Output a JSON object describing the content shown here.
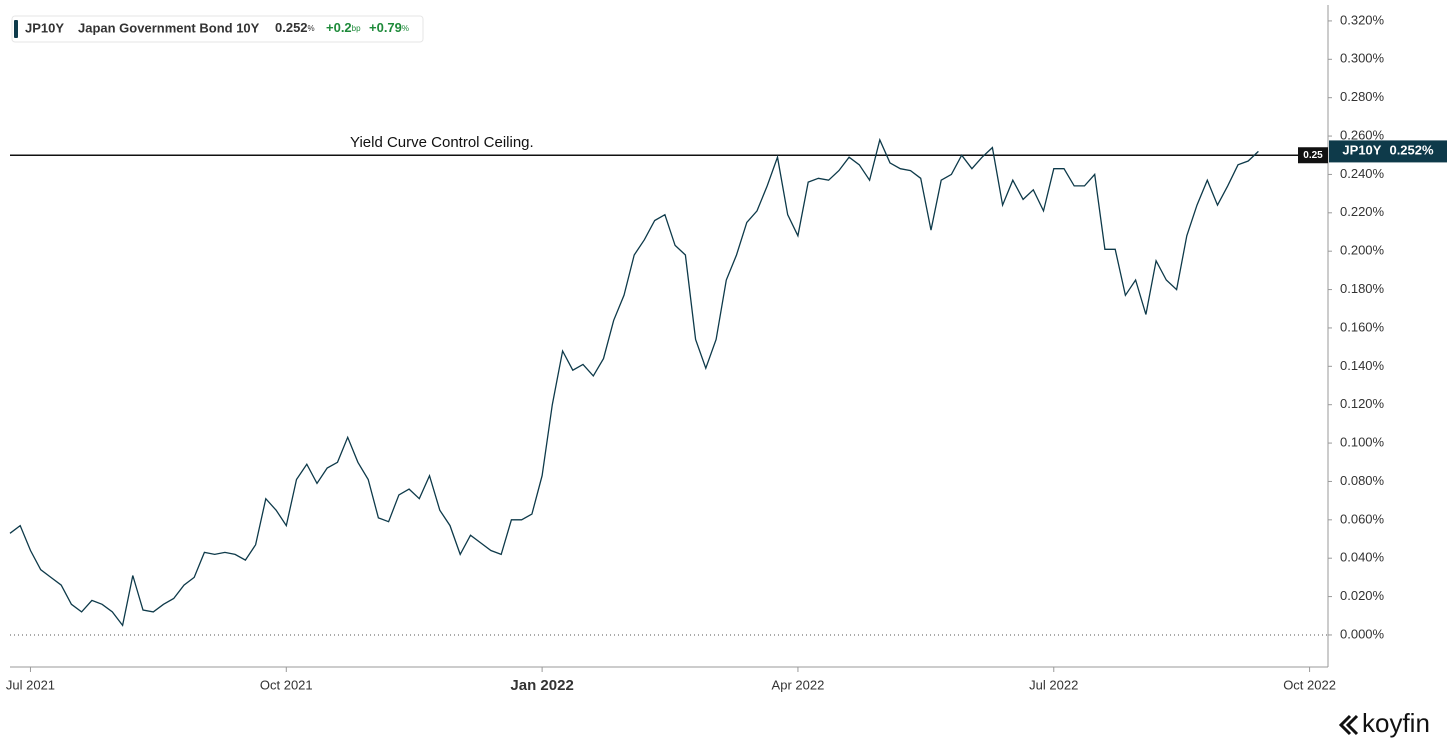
{
  "chart_data": {
    "type": "line",
    "header": {
      "name": "Japan Government Bond 10Y",
      "value": "0.252",
      "unit": "%",
      "change": "+0.2",
      "change_unit": "bp",
      "pct_change": "+0.79",
      "pct_unit": "%"
    },
    "brand": "koyfin",
    "hline": {
      "value": 0.25,
      "label": "0.25",
      "annotation": "Yield Curve Control Ceiling."
    },
    "last_label": "0.252%",
    "baseline": 0,
    "xlim": [
      2021.48,
      2022.768
    ],
    "xticks": [
      {
        "value": 2021.5,
        "label": "Jul 2021"
      },
      {
        "value": 2021.75,
        "label": "Oct 2021"
      },
      {
        "value": 2022,
        "label": "Jan 2022"
      },
      {
        "value": 2022.25,
        "label": "Apr 2022"
      },
      {
        "value": 2022.5,
        "label": "Jul 2022"
      },
      {
        "value": 2022.75,
        "label": "Oct 2022"
      }
    ],
    "ylim": [
      -0.0167,
      0.3283
    ],
    "yticks": [
      {
        "value": 0,
        "label": "0.000%"
      },
      {
        "value": 0.02,
        "label": "0.020%"
      },
      {
        "value": 0.04,
        "label": "0.040%"
      },
      {
        "value": 0.06,
        "label": "0.060%"
      },
      {
        "value": 0.08,
        "label": "0.080%"
      },
      {
        "value": 0.1,
        "label": "0.100%"
      },
      {
        "value": 0.12,
        "label": "0.120%"
      },
      {
        "value": 0.14,
        "label": "0.140%"
      },
      {
        "value": 0.16,
        "label": "0.160%"
      },
      {
        "value": 0.18,
        "label": "0.180%"
      },
      {
        "value": 0.2,
        "label": "0.200%"
      },
      {
        "value": 0.22,
        "label": "0.220%"
      },
      {
        "value": 0.24,
        "label": "0.240%"
      },
      {
        "value": 0.26,
        "label": "0.260%"
      },
      {
        "value": 0.28,
        "label": "0.280%"
      },
      {
        "value": 0.3,
        "label": "0.300%"
      },
      {
        "value": 0.32,
        "label": "0.320%"
      }
    ],
    "x": [
      2021.48,
      2021.49,
      2021.5,
      2021.51,
      2021.52,
      2021.53,
      2021.54,
      2021.55,
      2021.56,
      2021.57,
      2021.58,
      2021.59,
      2021.6,
      2021.61,
      2021.62,
      2021.63,
      2021.64,
      2021.65,
      2021.66,
      2021.67,
      2021.68,
      2021.69,
      2021.7,
      2021.71,
      2021.72,
      2021.73,
      2021.74,
      2021.75,
      2021.76,
      2021.77,
      2021.78,
      2021.79,
      2021.8,
      2021.81,
      2021.82,
      2021.83,
      2021.84,
      2021.85,
      2021.86,
      2021.87,
      2021.88,
      2021.89,
      2021.9,
      2021.91,
      2021.92,
      2021.93,
      2021.94,
      2021.95,
      2021.96,
      2021.97,
      2021.98,
      2021.99,
      2022.0,
      2022.01,
      2022.02,
      2022.03,
      2022.04,
      2022.05,
      2022.06,
      2022.07,
      2022.08,
      2022.09,
      2022.1,
      2022.11,
      2022.12,
      2022.13,
      2022.14,
      2022.15,
      2022.16,
      2022.17,
      2022.18,
      2022.19,
      2022.2,
      2022.21,
      2022.22,
      2022.23,
      2022.24,
      2022.25,
      2022.26,
      2022.27,
      2022.28,
      2022.29,
      2022.3,
      2022.31,
      2022.32,
      2022.33,
      2022.34,
      2022.35,
      2022.36,
      2022.37,
      2022.38,
      2022.39,
      2022.4,
      2022.41,
      2022.42,
      2022.43,
      2022.44,
      2022.45,
      2022.46,
      2022.47,
      2022.48,
      2022.49,
      2022.5,
      2022.51,
      2022.52,
      2022.53,
      2022.54,
      2022.55,
      2022.56,
      2022.57,
      2022.58,
      2022.59,
      2022.6,
      2022.61,
      2022.62,
      2022.63,
      2022.64,
      2022.65,
      2022.66,
      2022.67,
      2022.68,
      2022.69,
      2022.7
    ],
    "series": [
      {
        "name": "JP10Y",
        "color": "#0e3a4a",
        "values": [
          0.053,
          0.057,
          0.044,
          0.034,
          0.03,
          0.026,
          0.016,
          0.012,
          0.018,
          0.016,
          0.012,
          0.005,
          0.031,
          0.013,
          0.012,
          0.016,
          0.019,
          0.026,
          0.03,
          0.043,
          0.042,
          0.043,
          0.042,
          0.039,
          0.047,
          0.071,
          0.065,
          0.057,
          0.081,
          0.089,
          0.079,
          0.087,
          0.09,
          0.103,
          0.09,
          0.081,
          0.061,
          0.059,
          0.073,
          0.076,
          0.071,
          0.083,
          0.065,
          0.057,
          0.042,
          0.052,
          0.048,
          0.044,
          0.042,
          0.06,
          0.06,
          0.063,
          0.083,
          0.12,
          0.148,
          0.138,
          0.141,
          0.135,
          0.144,
          0.164,
          0.177,
          0.198,
          0.206,
          0.216,
          0.219,
          0.203,
          0.198,
          0.154,
          0.139,
          0.154,
          0.185,
          0.198,
          0.215,
          0.221,
          0.234,
          0.249,
          0.219,
          0.208,
          0.236,
          0.238,
          0.237,
          0.242,
          0.249,
          0.245,
          0.237,
          0.258,
          0.246,
          0.243,
          0.242,
          0.238,
          0.211,
          0.237,
          0.24,
          0.25,
          0.243,
          0.249,
          0.254,
          0.224,
          0.237,
          0.227,
          0.232,
          0.221,
          0.243,
          0.243,
          0.234,
          0.234,
          0.24,
          0.201,
          0.201,
          0.177,
          0.185,
          0.167,
          0.195,
          0.185,
          0.18,
          0.208,
          0.224,
          0.237,
          0.224,
          0.234,
          0.245,
          0.247,
          0.252
        ]
      }
    ]
  }
}
